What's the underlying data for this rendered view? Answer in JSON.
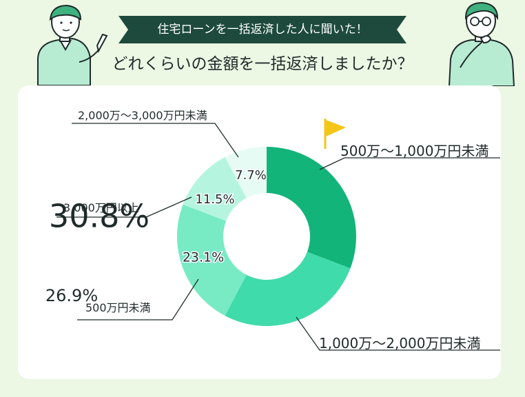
{
  "header": {
    "banner": "住宅ローンを一括返済した人に聞いた！",
    "question": "どれくらいの金額を一括返済しましたか？"
  },
  "chart_data": {
    "type": "pie",
    "donut": true,
    "title": "",
    "categories": [
      "500万〜1,000万円未満",
      "1,000万〜2,000万円未満",
      "500万円未満",
      "3,000万円以上",
      "2,000万〜3,000万円未満"
    ],
    "values": [
      30.8,
      26.9,
      23.1,
      11.5,
      7.7
    ],
    "labels": [
      "30.8%",
      "26.9%",
      "23.1%",
      "11.5%",
      "7.7%"
    ],
    "colors": [
      "#12b47a",
      "#40dbaa",
      "#78eac4",
      "#b5f5e0",
      "#e6fbf3"
    ],
    "highlight_category": "500万〜1,000万円未満",
    "highlight_color": "#f5c518"
  },
  "colors": {
    "background": "#ecf7e4",
    "banner": "#1d4a3c",
    "card": "#ffffff"
  }
}
